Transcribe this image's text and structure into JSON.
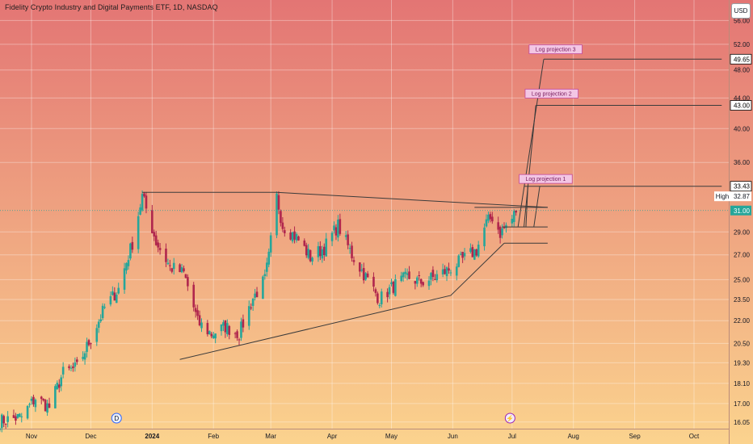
{
  "header": {
    "title": "Fidelity Crypto Industry and Digital Payments ETF, 1D, NASDAQ",
    "currency": "USD"
  },
  "colors": {
    "bg_top": "#e37574",
    "bg_bottom": "#fbd38e",
    "candle_up": "#26a69a",
    "candle_down": "#b0264d",
    "trendline": "#3b3b3b",
    "projection_label_fill": "#f3c6e4",
    "projection_label_border": "#c44a9a",
    "last_price": "#26a69a"
  },
  "badges": {
    "dividend": "D",
    "earnings": "⚡"
  },
  "price_labels": {
    "projection_3": "49.65",
    "projection_2": "43.00",
    "projection_1": "33.43",
    "high_label": "High",
    "high_value": "32.87",
    "last": "31.00"
  },
  "chart_data": {
    "type": "candlestick",
    "y_scale": "log",
    "ylim": [
      15.8,
      58.5
    ],
    "y_ticks": [
      "56.00",
      "52.00",
      "48.00",
      "44.00",
      "40.00",
      "36.00",
      "29.00",
      "27.00",
      "25.00",
      "23.50",
      "22.00",
      "20.50",
      "19.30",
      "18.10",
      "17.00",
      "16.05"
    ],
    "y_tick_values": [
      56,
      52,
      48,
      44,
      40,
      36,
      29,
      27,
      25,
      23.5,
      22,
      20.5,
      19.3,
      18.1,
      17,
      16.05
    ],
    "x_ticks": [
      {
        "label": "Nov",
        "date": "2023-11-01",
        "bold": false
      },
      {
        "label": "Dec",
        "date": "2023-12-01",
        "bold": false
      },
      {
        "label": "2024",
        "date": "2024-01-01",
        "bold": true
      },
      {
        "label": "Feb",
        "date": "2024-02-01",
        "bold": false
      },
      {
        "label": "Mar",
        "date": "2024-03-01",
        "bold": false
      },
      {
        "label": "Apr",
        "date": "2024-04-01",
        "bold": false
      },
      {
        "label": "May",
        "date": "2024-05-01",
        "bold": false
      },
      {
        "label": "Jun",
        "date": "2024-06-01",
        "bold": false
      },
      {
        "label": "Jul",
        "date": "2024-07-01",
        "bold": false
      },
      {
        "label": "Aug",
        "date": "2024-08-01",
        "bold": false
      },
      {
        "label": "Sep",
        "date": "2024-09-01",
        "bold": false
      },
      {
        "label": "Oct",
        "date": "2024-10-01",
        "bold": false
      }
    ],
    "price_anchors": [
      [
        "2023-10-16",
        16.1
      ],
      [
        "2023-10-27",
        16.3
      ],
      [
        "2023-11-03",
        17.3
      ],
      [
        "2023-11-10",
        16.8
      ],
      [
        "2023-11-17",
        18.7
      ],
      [
        "2023-11-24",
        19.0
      ],
      [
        "2023-12-01",
        20.8
      ],
      [
        "2023-12-08",
        22.9
      ],
      [
        "2023-12-15",
        24.3
      ],
      [
        "2023-12-22",
        28.0
      ],
      [
        "2023-12-27",
        32.4
      ],
      [
        "2024-01-03",
        28.1
      ],
      [
        "2024-01-10",
        26.0
      ],
      [
        "2024-01-17",
        25.5
      ],
      [
        "2024-01-24",
        21.9
      ],
      [
        "2024-01-31",
        21.1
      ],
      [
        "2024-02-07",
        21.6
      ],
      [
        "2024-02-14",
        21.1
      ],
      [
        "2024-02-21",
        23.6
      ],
      [
        "2024-02-27",
        25.0
      ],
      [
        "2024-02-29",
        26.8
      ],
      [
        "2024-03-04",
        32.3
      ],
      [
        "2024-03-07",
        29.6
      ],
      [
        "2024-03-14",
        28.5
      ],
      [
        "2024-03-21",
        26.8
      ],
      [
        "2024-03-28",
        27.6
      ],
      [
        "2024-04-04",
        29.6
      ],
      [
        "2024-04-11",
        27.0
      ],
      [
        "2024-04-18",
        25.2
      ],
      [
        "2024-04-25",
        23.5
      ],
      [
        "2024-05-02",
        24.5
      ],
      [
        "2024-05-09",
        25.2
      ],
      [
        "2024-05-16",
        24.8
      ],
      [
        "2024-05-23",
        25.2
      ],
      [
        "2024-05-30",
        25.8
      ],
      [
        "2024-06-06",
        26.6
      ],
      [
        "2024-06-13",
        27.4
      ],
      [
        "2024-06-18",
        29.8
      ],
      [
        "2024-06-21",
        30.4
      ],
      [
        "2024-06-25",
        28.9
      ],
      [
        "2024-07-01",
        30.2
      ],
      [
        "2024-07-03",
        31.0
      ]
    ],
    "lines": [
      {
        "name": "resistance",
        "points": [
          [
            "2023-12-27",
            32.8
          ],
          [
            "2024-03-04",
            32.8
          ],
          [
            "2024-07-19",
            31.3
          ]
        ]
      },
      {
        "name": "support",
        "points": [
          [
            "2024-01-15",
            19.5
          ],
          [
            "2024-05-31",
            23.8
          ],
          [
            "2024-06-27",
            28.0
          ]
        ]
      },
      {
        "name": "level-top",
        "points": [
          [
            "2024-06-12",
            31.3
          ],
          [
            "2024-07-19",
            31.3
          ]
        ]
      },
      {
        "name": "level-mid",
        "points": [
          [
            "2024-06-26",
            29.45
          ],
          [
            "2024-07-19",
            29.45
          ]
        ]
      },
      {
        "name": "level-bottom",
        "points": [
          [
            "2024-06-27",
            28.0
          ],
          [
            "2024-07-19",
            28.0
          ]
        ]
      },
      {
        "name": "projection-ray-1",
        "points": [
          [
            "2024-07-04",
            29.45
          ],
          [
            "2024-07-17",
            49.65
          ]
        ]
      },
      {
        "name": "projection-ray-2",
        "points": [
          [
            "2024-07-07",
            29.45
          ],
          [
            "2024-07-13",
            43.0
          ]
        ]
      },
      {
        "name": "projection-ray-3",
        "points": [
          [
            "2024-07-08",
            29.45
          ],
          [
            "2024-07-09",
            33.43
          ]
        ]
      },
      {
        "name": "projection-ray-4",
        "points": [
          [
            "2024-07-12",
            29.45
          ],
          [
            "2024-07-15",
            33.43
          ]
        ]
      },
      {
        "name": "projection-level-3",
        "points": [
          [
            "2024-07-17",
            49.65
          ],
          [
            "2024-10-15",
            49.65
          ]
        ]
      },
      {
        "name": "projection-level-2",
        "points": [
          [
            "2024-07-13",
            43.0
          ],
          [
            "2024-10-15",
            43.0
          ]
        ]
      },
      {
        "name": "projection-level-1",
        "points": [
          [
            "2024-07-07",
            33.43
          ],
          [
            "2024-10-15",
            33.43
          ]
        ]
      }
    ],
    "annotations": [
      {
        "text": "Log projection 3",
        "date": "2024-07-23",
        "price": 51.2
      },
      {
        "text": "Log projection 2",
        "date": "2024-07-21",
        "price": 44.6
      },
      {
        "text": "Log projection 1",
        "date": "2024-07-18",
        "price": 34.2
      }
    ],
    "events": [
      {
        "type": "dividend",
        "date": "2023-12-14"
      },
      {
        "type": "earnings",
        "date": "2024-06-30"
      }
    ]
  }
}
